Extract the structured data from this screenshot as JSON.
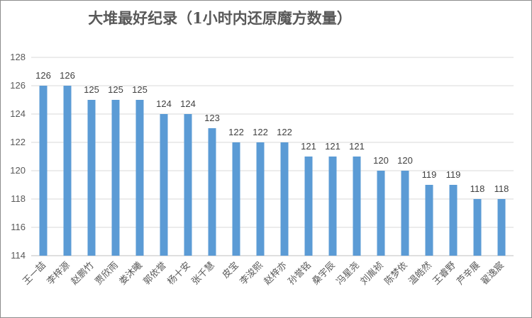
{
  "chart_data": {
    "type": "bar",
    "title": "大堆最好纪录（1小时内还原魔方数量）",
    "xlabel": "",
    "ylabel": "",
    "ylim": [
      114,
      128
    ],
    "yticks": [
      114,
      116,
      118,
      120,
      122,
      124,
      126,
      128
    ],
    "grid": true,
    "legend": "none",
    "bar_color": "#5b9bd5",
    "categories": [
      "王一喆",
      "李梓源",
      "赵鹏竹",
      "贾欣雨",
      "娄沐曦",
      "郭依誉",
      "杨十安",
      "张千慧",
      "皮宝",
      "李浚熙",
      "赵梓亦",
      "孙誉铭",
      "桑宇辰",
      "冯星尧",
      "刘胤祯",
      "陈梦依",
      "温皓然",
      "王睿野",
      "芦辛展",
      "翟逸宸"
    ],
    "values": [
      126,
      126,
      125,
      125,
      125,
      124,
      124,
      123,
      122,
      122,
      122,
      121,
      121,
      121,
      120,
      120,
      119,
      119,
      118,
      118
    ]
  }
}
